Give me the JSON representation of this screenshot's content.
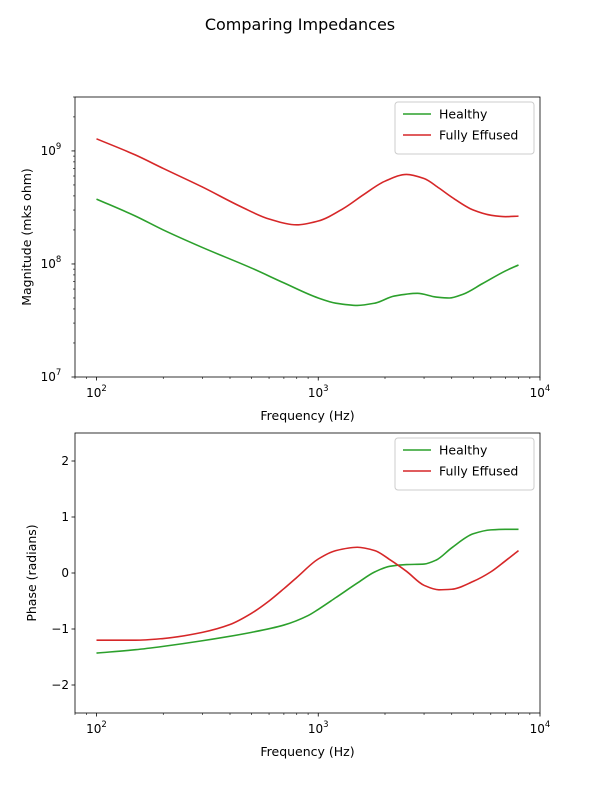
{
  "figure": {
    "title": "Comparing Impedances"
  },
  "chart_data": [
    {
      "type": "line",
      "xlabel": "Frequency (Hz)",
      "ylabel": "Magnitude (mks ohm)",
      "xscale": "log",
      "yscale": "log",
      "xlim": [
        80,
        10000
      ],
      "ylim": [
        10000000,
        3000000000
      ],
      "xticks": [
        {
          "value": 100,
          "base": "10",
          "exp": "2"
        },
        {
          "value": 1000,
          "base": "10",
          "exp": "3"
        },
        {
          "value": 10000,
          "base": "10",
          "exp": "4"
        }
      ],
      "yticks": [
        {
          "value": 10000000,
          "base": "10",
          "exp": "7"
        },
        {
          "value": 100000000,
          "base": "10",
          "exp": "8"
        },
        {
          "value": 1000000000,
          "base": "10",
          "exp": "9"
        }
      ],
      "grid": false,
      "legend": "top-right",
      "series": [
        {
          "name": "Healthy",
          "color": "#2ca02c",
          "x": [
            100,
            150,
            200,
            300,
            500,
            700,
            1000,
            1200,
            1500,
            1800,
            2200,
            2800,
            3400,
            3900,
            4500,
            5500,
            7000,
            8000
          ],
          "y": [
            375000000,
            265000000,
            200000000,
            140000000,
            92000000,
            68000000,
            50000000,
            45000000,
            43000000,
            45000000,
            52000000,
            55000000,
            51000000,
            50000000,
            54000000,
            67000000,
            87000000,
            98000000
          ]
        },
        {
          "name": "Fully Effused",
          "color": "#d62728",
          "x": [
            100,
            150,
            200,
            300,
            450,
            600,
            800,
            1000,
            1300,
            1600,
            2000,
            2500,
            3000,
            3500,
            4000,
            5000,
            6000,
            7000,
            8000
          ],
          "y": [
            1280000000,
            920000000,
            700000000,
            480000000,
            320000000,
            250000000,
            222000000,
            240000000,
            310000000,
            410000000,
            540000000,
            620000000,
            570000000,
            470000000,
            390000000,
            300000000,
            270000000,
            262000000,
            265000000
          ]
        }
      ]
    },
    {
      "type": "line",
      "xlabel": "Frequency (Hz)",
      "ylabel": "Phase (radians)",
      "xscale": "log",
      "yscale": "linear",
      "xlim": [
        80,
        10000
      ],
      "ylim": [
        -2.5,
        2.5
      ],
      "xticks": [
        {
          "value": 100,
          "base": "10",
          "exp": "2"
        },
        {
          "value": 1000,
          "base": "10",
          "exp": "3"
        },
        {
          "value": 10000,
          "base": "10",
          "exp": "4"
        }
      ],
      "yticks": [
        {
          "value": -2,
          "label": "−2"
        },
        {
          "value": -1,
          "label": "−1"
        },
        {
          "value": 0,
          "label": "0"
        },
        {
          "value": 1,
          "label": "1"
        },
        {
          "value": 2,
          "label": "2"
        }
      ],
      "grid": false,
      "legend": "top-right",
      "series": [
        {
          "name": "Healthy",
          "color": "#2ca02c",
          "x": [
            100,
            150,
            200,
            300,
            500,
            700,
            900,
            1000,
            1200,
            1500,
            1800,
            2100,
            2500,
            3000,
            3400,
            4000,
            5000,
            6000,
            7000,
            8000
          ],
          "y": [
            -1.43,
            -1.37,
            -1.31,
            -1.21,
            -1.06,
            -0.93,
            -0.76,
            -0.65,
            -0.44,
            -0.18,
            0.02,
            0.12,
            0.15,
            0.16,
            0.23,
            0.45,
            0.7,
            0.77,
            0.78,
            0.78
          ]
        },
        {
          "name": "Fully Effused",
          "color": "#d62728",
          "x": [
            100,
            150,
            200,
            300,
            400,
            500,
            600,
            700,
            800,
            1000,
            1200,
            1500,
            1800,
            2100,
            2500,
            3000,
            3500,
            4000,
            5000,
            6000,
            7000,
            8000
          ],
          "y": [
            -1.2,
            -1.2,
            -1.17,
            -1.06,
            -0.92,
            -0.72,
            -0.5,
            -0.28,
            -0.08,
            0.25,
            0.4,
            0.46,
            0.4,
            0.24,
            0.03,
            -0.22,
            -0.3,
            -0.29,
            -0.15,
            0.02,
            0.22,
            0.4
          ]
        }
      ]
    }
  ]
}
